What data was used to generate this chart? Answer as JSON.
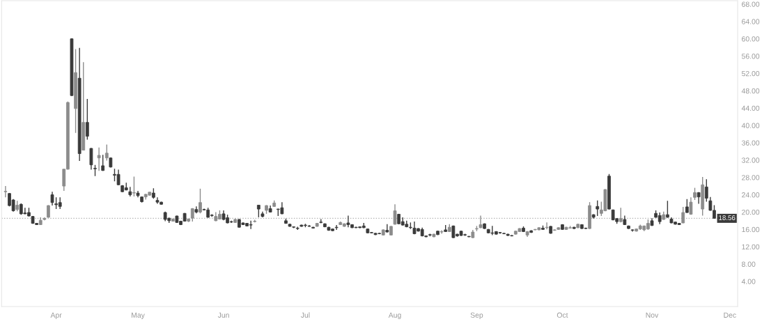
{
  "chart_data": {
    "type": "candlestick",
    "categories": [
      null,
      null,
      null,
      null,
      null,
      null,
      null,
      null,
      null,
      null,
      null,
      null,
      null,
      "Apr",
      null,
      null,
      null,
      null,
      null,
      null,
      null,
      null,
      null,
      null,
      null,
      null,
      null,
      null,
      null,
      null,
      null,
      null,
      null,
      null,
      "May",
      null,
      null,
      null,
      null,
      null,
      null,
      null,
      null,
      null,
      null,
      null,
      null,
      null,
      null,
      null,
      null,
      null,
      null,
      null,
      null,
      null,
      "Jun",
      null,
      null,
      null,
      null,
      null,
      null,
      null,
      null,
      null,
      null,
      null,
      null,
      null,
      null,
      null,
      null,
      null,
      null,
      null,
      null,
      "Jul",
      null,
      null,
      null,
      null,
      null,
      null,
      null,
      null,
      null,
      null,
      null,
      null,
      null,
      null,
      null,
      null,
      null,
      null,
      null,
      null,
      null,
      null,
      "Aug",
      null,
      null,
      null,
      null,
      null,
      null,
      null,
      null,
      null,
      null,
      null,
      null,
      null,
      null,
      null,
      null,
      null,
      null,
      null,
      null,
      "Sep",
      null,
      null,
      null,
      null,
      null,
      null,
      null,
      null,
      null,
      null,
      null,
      null,
      null,
      null,
      null,
      null,
      null,
      null,
      null,
      null,
      null,
      "Oct",
      null,
      null,
      null,
      null,
      null,
      null,
      null,
      null,
      null,
      null,
      null,
      null,
      null,
      null,
      null,
      null,
      null,
      null,
      null,
      null,
      null,
      null,
      "Nov",
      null,
      null,
      null,
      null,
      null,
      null,
      null,
      null,
      null,
      null,
      null,
      null,
      null,
      null,
      null,
      null,
      null,
      null,
      null,
      "Dec"
    ],
    "ohlc": [
      [
        24.7,
        26.0,
        23.4,
        24.8
      ],
      [
        24.3,
        24.4,
        21.3,
        21.5
      ],
      [
        22.8,
        23.0,
        20.1,
        20.3
      ],
      [
        20.6,
        22.6,
        20.2,
        21.6
      ],
      [
        21.8,
        22.0,
        19.4,
        19.6
      ],
      [
        19.8,
        21.0,
        19.5,
        19.6
      ],
      [
        19.9,
        21.0,
        19.0,
        19.1
      ],
      [
        19.0,
        19.1,
        17.3,
        17.4
      ],
      [
        17.4,
        17.5,
        17.0,
        17.1
      ],
      [
        17.1,
        18.8,
        17.0,
        18.1
      ],
      [
        18.3,
        18.8,
        18.1,
        18.5
      ],
      [
        18.8,
        21.6,
        18.7,
        21.5
      ],
      [
        24.0,
        24.7,
        21.5,
        22.2
      ],
      [
        21.9,
        23.4,
        20.7,
        21.7
      ],
      [
        22.2,
        23.4,
        20.7,
        21.3
      ],
      [
        26.0,
        29.9,
        24.9,
        29.9
      ],
      [
        29.9,
        45.5,
        29.8,
        45.3
      ],
      [
        60.0,
        60.1,
        46.8,
        46.9
      ],
      [
        43.9,
        57.6,
        38.3,
        52.2
      ],
      [
        50.9,
        57.9,
        31.8,
        33.5
      ],
      [
        34.3,
        54.6,
        34.2,
        40.7
      ],
      [
        40.7,
        46.1,
        36.7,
        37.5
      ],
      [
        34.7,
        34.8,
        29.8,
        30.9
      ],
      [
        30.1,
        30.9,
        28.3,
        30.0
      ],
      [
        32.5,
        34.9,
        29.5,
        33.1
      ],
      [
        30.7,
        33.2,
        29.5,
        29.6
      ],
      [
        32.5,
        35.6,
        31.9,
        33.6
      ],
      [
        32.5,
        32.6,
        30.3,
        30.4
      ],
      [
        28.7,
        30.0,
        27.1,
        28.5
      ],
      [
        28.7,
        29.8,
        26.2,
        26.3
      ],
      [
        26.1,
        26.2,
        24.6,
        24.7
      ],
      [
        25.6,
        26.8,
        25.0,
        25.1
      ],
      [
        24.7,
        25.8,
        23.6,
        24.0
      ],
      [
        24.4,
        28.2,
        23.6,
        24.5
      ],
      [
        24.4,
        24.9,
        23.4,
        23.8
      ],
      [
        23.5,
        23.6,
        22.2,
        22.4
      ],
      [
        23.5,
        24.2,
        22.9,
        24.1
      ],
      [
        23.9,
        24.6,
        23.8,
        24.6
      ],
      [
        24.4,
        25.5,
        23.1,
        23.4
      ],
      [
        22.7,
        23.4,
        21.9,
        22.3
      ],
      [
        22.3,
        22.4,
        21.7,
        21.8
      ],
      [
        19.9,
        20.1,
        17.9,
        18.3
      ],
      [
        18.6,
        18.7,
        17.5,
        18.0
      ],
      [
        17.9,
        18.5,
        17.8,
        18.4
      ],
      [
        19.1,
        19.2,
        17.5,
        17.6
      ],
      [
        17.9,
        18.0,
        17.0,
        17.1
      ],
      [
        19.7,
        19.8,
        17.8,
        17.9
      ],
      [
        17.9,
        18.5,
        17.7,
        18.4
      ],
      [
        18.6,
        20.9,
        17.8,
        20.8
      ],
      [
        20.6,
        21.3,
        19.7,
        20.0
      ],
      [
        20.0,
        25.4,
        19.7,
        22.2
      ],
      [
        20.6,
        20.8,
        20.4,
        20.5
      ],
      [
        20.5,
        21.0,
        18.7,
        18.8
      ],
      [
        19.3,
        19.5,
        18.9,
        19.2
      ],
      [
        18.0,
        20.0,
        17.9,
        19.0
      ],
      [
        18.4,
        20.4,
        18.3,
        19.5
      ],
      [
        19.6,
        20.4,
        18.1,
        18.3
      ],
      [
        18.7,
        19.4,
        17.4,
        17.5
      ],
      [
        17.8,
        18.0,
        17.5,
        17.7
      ],
      [
        17.6,
        18.5,
        17.5,
        18.3
      ],
      [
        18.3,
        18.4,
        16.4,
        16.5
      ],
      [
        17.5,
        17.6,
        17.0,
        17.1
      ],
      [
        17.4,
        17.5,
        16.7,
        16.8
      ],
      [
        17.1,
        18.0,
        16.1,
        17.0
      ],
      [
        17.8,
        18.2,
        17.6,
        17.9
      ],
      [
        21.6,
        21.6,
        18.8,
        20.7
      ],
      [
        19.6,
        20.1,
        18.8,
        19.0
      ],
      [
        20.4,
        21.6,
        19.6,
        21.5
      ],
      [
        20.8,
        21.5,
        19.9,
        20.0
      ],
      [
        21.3,
        22.7,
        21.2,
        22.1
      ],
      [
        20.7,
        20.8,
        19.1,
        20.6
      ],
      [
        21.0,
        22.3,
        19.5,
        19.6
      ],
      [
        18.0,
        18.5,
        17.3,
        17.4
      ],
      [
        17.2,
        17.3,
        16.6,
        16.7
      ],
      [
        16.6,
        16.7,
        16.3,
        16.5
      ],
      [
        16.3,
        16.6,
        15.9,
        16.2
      ],
      [
        17.0,
        17.1,
        16.6,
        16.7
      ],
      [
        17.0,
        17.3,
        16.5,
        16.9
      ],
      [
        16.8,
        17.0,
        16.6,
        16.7
      ],
      [
        16.5,
        16.6,
        16.2,
        16.3
      ],
      [
        16.7,
        17.5,
        16.6,
        17.4
      ],
      [
        17.7,
        18.4,
        17.4,
        17.6
      ],
      [
        17.3,
        17.4,
        16.5,
        16.6
      ],
      [
        16.5,
        16.6,
        15.7,
        15.8
      ],
      [
        16.1,
        16.2,
        15.6,
        15.7
      ],
      [
        16.5,
        17.0,
        15.9,
        16.4
      ],
      [
        17.1,
        17.8,
        17.0,
        17.6
      ],
      [
        16.7,
        17.4,
        16.6,
        17.3
      ],
      [
        17.5,
        19.2,
        16.5,
        17.1
      ],
      [
        17.1,
        17.2,
        16.3,
        16.4
      ],
      [
        16.5,
        16.6,
        16.3,
        16.4
      ],
      [
        16.6,
        16.7,
        16.3,
        16.4
      ],
      [
        16.8,
        17.5,
        16.3,
        16.4
      ],
      [
        16.1,
        16.2,
        15.1,
        15.2
      ],
      [
        15.3,
        15.4,
        15.1,
        15.2
      ],
      [
        15.1,
        15.2,
        14.7,
        14.8
      ],
      [
        15.1,
        15.2,
        14.9,
        15.0
      ],
      [
        14.7,
        16.0,
        14.6,
        15.9
      ],
      [
        15.8,
        17.2,
        15.3,
        15.4
      ],
      [
        14.7,
        16.8,
        14.6,
        16.7
      ],
      [
        17.2,
        21.8,
        17.1,
        20.3
      ],
      [
        19.5,
        19.6,
        17.2,
        17.3
      ],
      [
        17.8,
        18.8,
        16.9,
        17.0
      ],
      [
        17.2,
        18.0,
        16.5,
        16.6
      ],
      [
        16.5,
        17.6,
        16.1,
        16.4
      ],
      [
        16.3,
        17.8,
        14.9,
        15.0
      ],
      [
        16.2,
        16.3,
        15.5,
        15.6
      ],
      [
        16.0,
        16.4,
        14.4,
        14.5
      ],
      [
        14.5,
        14.6,
        14.2,
        14.3
      ],
      [
        14.8,
        15.0,
        14.4,
        14.7
      ],
      [
        14.3,
        15.0,
        14.2,
        14.9
      ],
      [
        15.6,
        15.7,
        14.7,
        14.8
      ],
      [
        15.4,
        15.8,
        15.0,
        15.5
      ],
      [
        15.9,
        17.0,
        15.4,
        15.5
      ],
      [
        15.5,
        17.2,
        15.4,
        16.5
      ],
      [
        16.8,
        16.9,
        14.0,
        14.1
      ],
      [
        14.9,
        15.0,
        14.3,
        14.5
      ],
      [
        15.6,
        15.7,
        14.5,
        14.6
      ],
      [
        14.8,
        15.0,
        14.5,
        14.7
      ],
      [
        14.4,
        14.5,
        14.2,
        14.3
      ],
      [
        14.1,
        15.9,
        14.0,
        15.4
      ],
      [
        16.1,
        16.8,
        15.6,
        16.2
      ],
      [
        16.4,
        19.2,
        16.3,
        17.1
      ],
      [
        17.3,
        17.4,
        16.1,
        16.2
      ],
      [
        16.0,
        16.1,
        15.1,
        15.2
      ],
      [
        15.2,
        16.8,
        14.7,
        15.1
      ],
      [
        15.5,
        15.6,
        14.8,
        14.9
      ],
      [
        15.3,
        15.4,
        15.0,
        15.2
      ],
      [
        15.1,
        15.2,
        14.9,
        15.0
      ],
      [
        14.9,
        15.0,
        14.5,
        14.6
      ],
      [
        14.6,
        14.7,
        14.4,
        14.5
      ],
      [
        14.9,
        15.7,
        14.8,
        15.6
      ],
      [
        15.5,
        16.3,
        15.4,
        16.2
      ],
      [
        16.3,
        16.7,
        15.4,
        15.5
      ],
      [
        14.7,
        15.6,
        14.3,
        15.5
      ],
      [
        15.7,
        15.8,
        15.2,
        15.3
      ],
      [
        15.9,
        16.1,
        15.8,
        16.0
      ],
      [
        15.9,
        16.5,
        15.8,
        16.4
      ],
      [
        16.3,
        16.9,
        15.9,
        16.0
      ],
      [
        16.4,
        17.6,
        16.0,
        16.5
      ],
      [
        16.7,
        16.8,
        15.0,
        15.1
      ],
      [
        15.8,
        16.0,
        15.7,
        15.9
      ],
      [
        16.0,
        16.5,
        15.9,
        16.4
      ],
      [
        17.1,
        17.2,
        15.9,
        16.0
      ],
      [
        16.0,
        16.6,
        15.9,
        16.5
      ],
      [
        16.3,
        16.8,
        16.2,
        16.4
      ],
      [
        16.5,
        16.6,
        16.1,
        16.2
      ],
      [
        16.4,
        17.3,
        16.3,
        17.2
      ],
      [
        17.1,
        17.2,
        16.1,
        16.2
      ],
      [
        16.3,
        16.4,
        16.1,
        16.2
      ],
      [
        16.2,
        22.3,
        16.1,
        21.5
      ],
      [
        19.4,
        19.5,
        18.5,
        18.8
      ],
      [
        21.3,
        22.7,
        19.1,
        20.7
      ],
      [
        19.7,
        22.4,
        19.1,
        20.5
      ],
      [
        20.3,
        25.3,
        20.2,
        25.2
      ],
      [
        28.3,
        28.8,
        20.6,
        20.7
      ],
      [
        20.5,
        20.6,
        18.1,
        18.2
      ],
      [
        18.5,
        18.6,
        17.3,
        17.8
      ],
      [
        17.8,
        21.0,
        17.6,
        18.5
      ],
      [
        18.3,
        19.2,
        17.0,
        17.1
      ],
      [
        16.8,
        16.9,
        16.1,
        16.2
      ],
      [
        15.9,
        16.0,
        15.5,
        15.8
      ],
      [
        15.6,
        16.2,
        15.5,
        16.1
      ],
      [
        16.1,
        17.1,
        15.9,
        16.8
      ],
      [
        15.9,
        16.9,
        15.6,
        16.8
      ],
      [
        16.1,
        18.3,
        15.9,
        17.4
      ],
      [
        18.0,
        18.6,
        16.8,
        16.9
      ],
      [
        19.7,
        20.4,
        18.7,
        18.8
      ],
      [
        19.2,
        19.9,
        17.2,
        17.8
      ],
      [
        18.3,
        20.1,
        18.2,
        19.4
      ],
      [
        19.4,
        22.6,
        18.7,
        18.8
      ],
      [
        18.4,
        18.8,
        17.4,
        17.5
      ],
      [
        17.7,
        17.8,
        17.1,
        17.2
      ],
      [
        17.4,
        17.5,
        17.0,
        17.1
      ],
      [
        17.5,
        21.2,
        17.4,
        19.9
      ],
      [
        21.2,
        23.0,
        19.8,
        19.9
      ],
      [
        19.5,
        23.4,
        19.4,
        22.3
      ],
      [
        23.4,
        25.6,
        22.8,
        24.5
      ],
      [
        24.5,
        24.6,
        21.9,
        23.5
      ],
      [
        20.7,
        28.1,
        19.2,
        26.3
      ],
      [
        25.8,
        27.6,
        22.4,
        23.2
      ],
      [
        22.6,
        23.5,
        20.3,
        20.4
      ],
      [
        20.4,
        21.6,
        18.5,
        18.56
      ],
      null,
      null,
      null,
      null
    ],
    "ylim": [
      -1.8,
      68.8
    ],
    "yticks": [
      {
        "value": 4,
        "label": "4.00"
      },
      {
        "value": 8,
        "label": "8.00"
      },
      {
        "value": 12,
        "label": "12.00"
      },
      {
        "value": 16,
        "label": "16.00"
      },
      {
        "value": 20,
        "label": "20.00"
      },
      {
        "value": 24,
        "label": "24.00"
      },
      {
        "value": 28,
        "label": "28.00"
      },
      {
        "value": 32,
        "label": "32.00"
      },
      {
        "value": 36,
        "label": "36.00"
      },
      {
        "value": 40,
        "label": "40.00"
      },
      {
        "value": 44,
        "label": "44.00"
      },
      {
        "value": 48,
        "label": "48.00"
      },
      {
        "value": 52,
        "label": "52.00"
      },
      {
        "value": 56,
        "label": "56.00"
      },
      {
        "value": 60,
        "label": "60.00"
      },
      {
        "value": 64,
        "label": "64.00"
      },
      {
        "value": 68,
        "label": "68.00"
      }
    ],
    "ref_lines": [
      {
        "axis": "y",
        "value": 18.56,
        "label": "18.56",
        "color": "#b0b0b0",
        "line_style": "dotted"
      }
    ],
    "grid": false
  }
}
